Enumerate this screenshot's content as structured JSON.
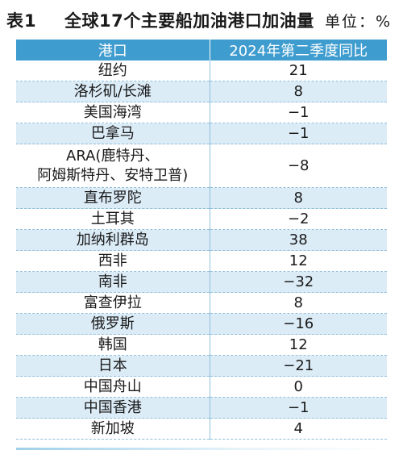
{
  "title": {
    "label": "表1",
    "text": "全球17个主要船加油港口加油量",
    "unit": "单位：%"
  },
  "table": {
    "headers": [
      "港口",
      "2024年第二季度同比"
    ],
    "rows": [
      {
        "port": "纽约",
        "value": "21"
      },
      {
        "port": "洛杉矶/长滩",
        "value": "8"
      },
      {
        "port": "美国海湾",
        "value": "−1"
      },
      {
        "port": "巴拿马",
        "value": "−1"
      },
      {
        "port": "ARA(鹿特丹、\n阿姆斯特丹、安特卫普)",
        "value": "−8"
      },
      {
        "port": "直布罗陀",
        "value": "8"
      },
      {
        "port": "土耳其",
        "value": "−2"
      },
      {
        "port": "加纳利群岛",
        "value": "38"
      },
      {
        "port": "西非",
        "value": "12"
      },
      {
        "port": "南非",
        "value": "−32"
      },
      {
        "port": "富查伊拉",
        "value": "8"
      },
      {
        "port": "俄罗斯",
        "value": "−16"
      },
      {
        "port": "韩国",
        "value": "12"
      },
      {
        "port": "日本",
        "value": "−21"
      },
      {
        "port": "中国舟山",
        "value": "0"
      },
      {
        "port": "中国香港",
        "value": "−1"
      },
      {
        "port": "新加坡",
        "value": "4"
      }
    ]
  },
  "colors": {
    "header_bg": "#3f9ccf",
    "row_shade": "#dcecf7",
    "rule": "#8fbfdc"
  }
}
